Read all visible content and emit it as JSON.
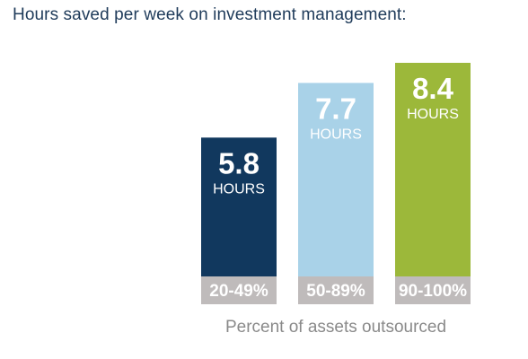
{
  "chart_data": {
    "type": "bar",
    "title": "Hours saved per week on investment management:",
    "xlabel": "Percent of assets outsourced",
    "ylabel": "",
    "categories": [
      "20-49%",
      "50-89%",
      "90-100%"
    ],
    "values": [
      5.8,
      7.7,
      8.4
    ],
    "value_unit": "HOURS",
    "value_labels": [
      "5.8",
      "7.7",
      "8.4"
    ],
    "colors": [
      "#11385e",
      "#a9d2e8",
      "#9cb83a"
    ],
    "category_band_color": "#bfbbbb",
    "ylim": [
      0,
      8.4
    ],
    "grid": false,
    "legend": "none"
  }
}
